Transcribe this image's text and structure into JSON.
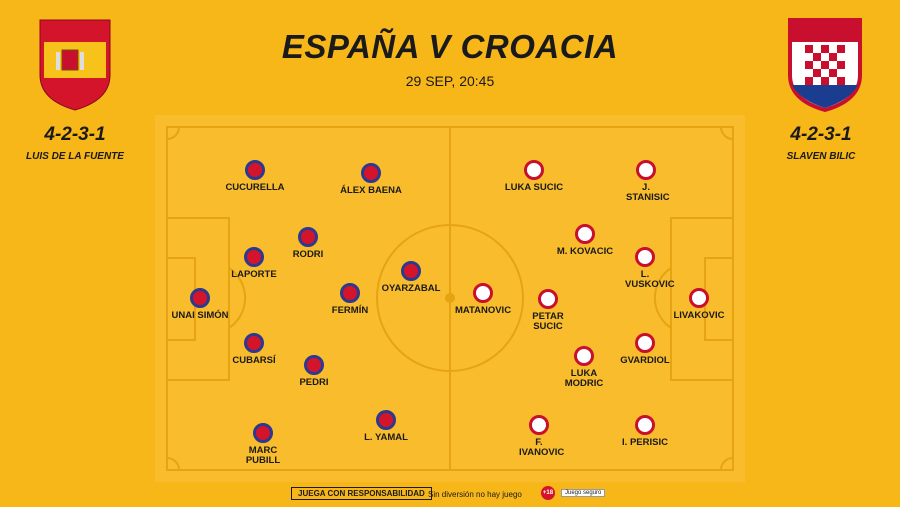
{
  "header": {
    "title": "ESPAÑA V CROACIA",
    "datetime": "29 SEP, 20:45"
  },
  "teams": [
    {
      "formation": "4-2-3-1",
      "coach": "LUIS DE LA FUENTE",
      "players": [
        "CUCURELLA",
        "ÁLEX BAENA",
        "LAPORTE",
        "RODRI",
        "OYARZABAL",
        "FERMÍN",
        "UNAI SIMÓN",
        "CUBARSÍ",
        "PEDRI",
        "L. YAMAL",
        "MARC PUBILL"
      ]
    },
    {
      "formation": "4-2-3-1",
      "coach": "SLAVEN BILIC",
      "players": [
        "LUKA SUCIC",
        "J. STANISIC",
        "M. KOVACIC",
        "L. VUSKOVIC",
        "LIVAKOVIC",
        "MATANOVIC",
        "PETAR SUCIC",
        "LUKA MODRIC",
        "GVARDIOL",
        "F. IVANOVIC",
        "I. PERISIC"
      ]
    }
  ],
  "footer": {
    "responsible": "JUEGA CON RESPONSABILIDAD",
    "slogan": "Sin diversión no hay juego",
    "age": "+18",
    "safe": "Juego seguro"
  }
}
